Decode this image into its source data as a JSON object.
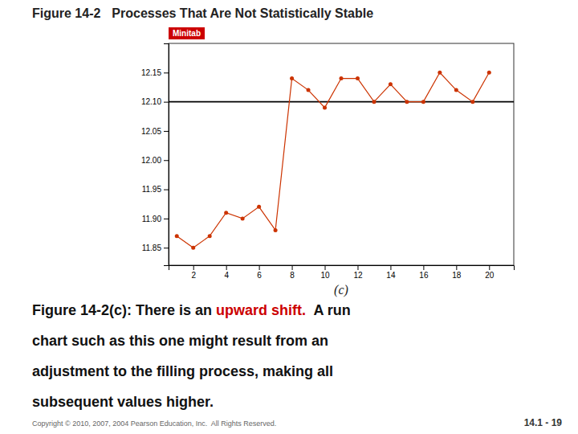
{
  "chart_data": {
    "type": "line",
    "title": "Figure 14-2",
    "subtitle": "Processes That Are Not Statistically Stable",
    "x": [
      1,
      2,
      3,
      4,
      5,
      6,
      7,
      8,
      9,
      10,
      11,
      12,
      13,
      14,
      15,
      16,
      17,
      18,
      19,
      20
    ],
    "values": [
      11.87,
      11.85,
      11.87,
      11.91,
      11.9,
      11.92,
      11.88,
      12.14,
      12.12,
      12.09,
      12.14,
      12.14,
      12.1,
      12.13,
      12.1,
      12.1,
      12.15,
      12.12,
      12.1,
      12.15
    ],
    "color": "#cc3300",
    "marker": "circle",
    "center_line": 12.1,
    "xlim": [
      0.5,
      21.5
    ],
    "xticks": [
      2,
      4,
      6,
      8,
      10,
      12,
      14,
      16,
      18,
      20
    ],
    "ylim": [
      11.82,
      12.2
    ],
    "yticks": [
      11.85,
      {
        "value": 11.9,
        "label": "11.90"
      },
      11.95,
      {
        "value": 12.0,
        "label": "12.00"
      },
      12.05,
      {
        "value": 12.1,
        "label": "12.10"
      },
      12.15
    ],
    "grid": false,
    "annotations": [
      {
        "text": "Minitab",
        "color": "#cc0000"
      },
      {
        "text": "(c)"
      },
      {
        "text": "Figure 14-2(c): There is an "
      },
      {
        "text": "upward shift.",
        "color": "#cc0000"
      },
      {
        "text": "  A run"
      },
      {
        "text": "chart such as this one might result from an"
      },
      {
        "text": "adjustment to the filling process, making all"
      },
      {
        "text": "subsequent values higher."
      },
      {
        "text": "Copyright © 2010, 2007, 2004 Pearson Education, Inc.  All Rights Reserved."
      },
      {
        "text": "14.1 - 19"
      }
    ]
  }
}
